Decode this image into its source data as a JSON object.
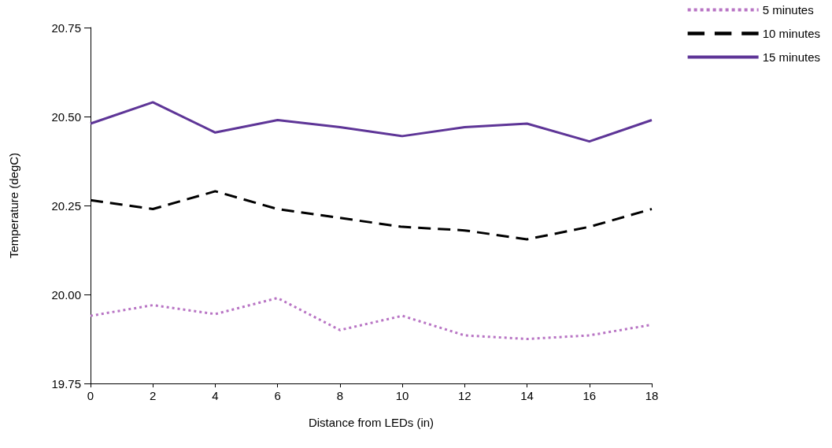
{
  "chart_data": {
    "type": "line",
    "xlabel": "Distance from LEDs (in)",
    "ylabel": "Temperature (degC)",
    "x": [
      0,
      2,
      4,
      6,
      8,
      10,
      12,
      14,
      16,
      18
    ],
    "xlim": [
      0,
      18
    ],
    "xticks": [
      0,
      2,
      4,
      6,
      8,
      10,
      12,
      14,
      16,
      18
    ],
    "ylim": [
      19.75,
      20.75
    ],
    "yticks": [
      {
        "value": 19.75,
        "label": "19.75"
      },
      {
        "value": 20,
        "label": "20.00"
      },
      {
        "value": 20.25,
        "label": "20.25"
      },
      {
        "value": 20.5,
        "label": "20.50"
      },
      {
        "value": 20.75,
        "label": "20.75"
      }
    ],
    "grid": false,
    "legend": "top right",
    "marker": "none",
    "series": [
      {
        "name": "5 minutes",
        "color": "#b874c4",
        "line_style": "dotted",
        "values": [
          19.94,
          19.97,
          19.945,
          19.99,
          19.9,
          19.94,
          19.885,
          19.875,
          19.885,
          19.915
        ]
      },
      {
        "name": "10 minutes",
        "color": "#000000",
        "line_style": "dashed",
        "values": [
          20.265,
          20.24,
          20.29,
          20.24,
          20.215,
          20.19,
          20.18,
          20.155,
          20.19,
          20.24
        ]
      },
      {
        "name": "15 minutes",
        "color": "#5e3597",
        "line_style": "solid",
        "values": [
          20.48,
          20.54,
          20.455,
          20.49,
          20.47,
          20.445,
          20.47,
          20.48,
          20.43,
          20.49
        ]
      }
    ]
  }
}
